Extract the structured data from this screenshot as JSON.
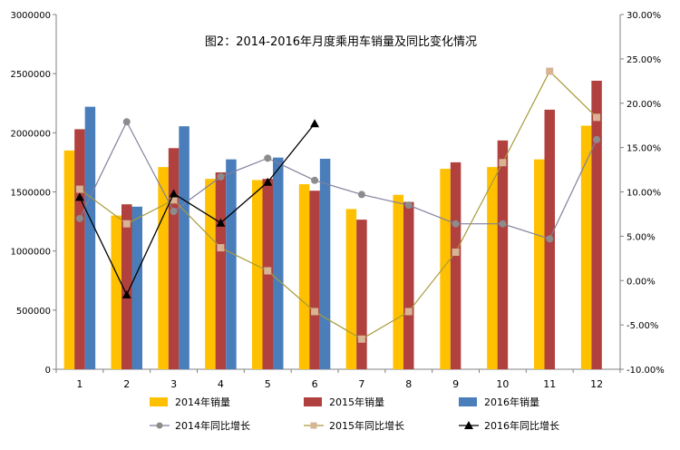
{
  "chart_data": {
    "type": "bar",
    "title": "图2：2014-2016年月度乘用车销量及同比变化情况",
    "categories": [
      "1",
      "2",
      "3",
      "4",
      "5",
      "6",
      "7",
      "8",
      "9",
      "10",
      "11",
      "12"
    ],
    "y_left": {
      "min": 0,
      "max": 3000000,
      "step": 500000,
      "tick_labels": [
        "0",
        "500000",
        "1000000",
        "1500000",
        "2000000",
        "2500000",
        "3000000"
      ]
    },
    "y_right": {
      "min": -0.1,
      "max": 0.3,
      "step": 0.05,
      "tick_labels": [
        "-10.00%",
        "-5.00%",
        "0.00%",
        "5.00%",
        "10.00%",
        "15.00%",
        "20.00%",
        "25.00%",
        "30.00%"
      ]
    },
    "bar_series": [
      {
        "name": "2014年销量",
        "color": "#FFC000",
        "values": [
          1850000,
          1300000,
          1710000,
          1610000,
          1600000,
          1565000,
          1355000,
          1475000,
          1695000,
          1710000,
          1775000,
          2060000
        ]
      },
      {
        "name": "2015年销量",
        "color": "#B0413E",
        "values": [
          2030000,
          1395000,
          1870000,
          1665000,
          1610000,
          1510000,
          1265000,
          1415000,
          1750000,
          1935000,
          2195000,
          2440000
        ]
      },
      {
        "name": "2016年销量",
        "color": "#4A7EBB",
        "values": [
          2220000,
          1375000,
          2055000,
          1775000,
          1790000,
          1780000,
          null,
          null,
          null,
          null,
          null,
          null
        ]
      }
    ],
    "line_series": [
      {
        "name": "2014年同比增长",
        "color": "#7F7F9F",
        "marker_color": "#8C8C8C",
        "marker": "circle",
        "values": [
          0.07,
          0.179,
          0.078,
          0.117,
          0.138,
          0.113,
          0.097,
          0.085,
          0.064,
          0.064,
          0.047,
          0.159
        ]
      },
      {
        "name": "2015年同比增长",
        "color": "#A89A3A",
        "marker_color": "#D6B494",
        "marker": "square",
        "values": [
          0.103,
          0.064,
          0.091,
          0.037,
          0.011,
          -0.035,
          -0.066,
          -0.035,
          0.032,
          0.133,
          0.236,
          0.184
        ]
      },
      {
        "name": "2016年同比增长",
        "color": "#000000",
        "marker_color": "#000000",
        "marker": "triangle",
        "values": [
          0.094,
          -0.016,
          0.098,
          0.065,
          0.111,
          0.177,
          null,
          null,
          null,
          null,
          null,
          null
        ]
      }
    ],
    "legend": {
      "placement": "bottom"
    }
  }
}
